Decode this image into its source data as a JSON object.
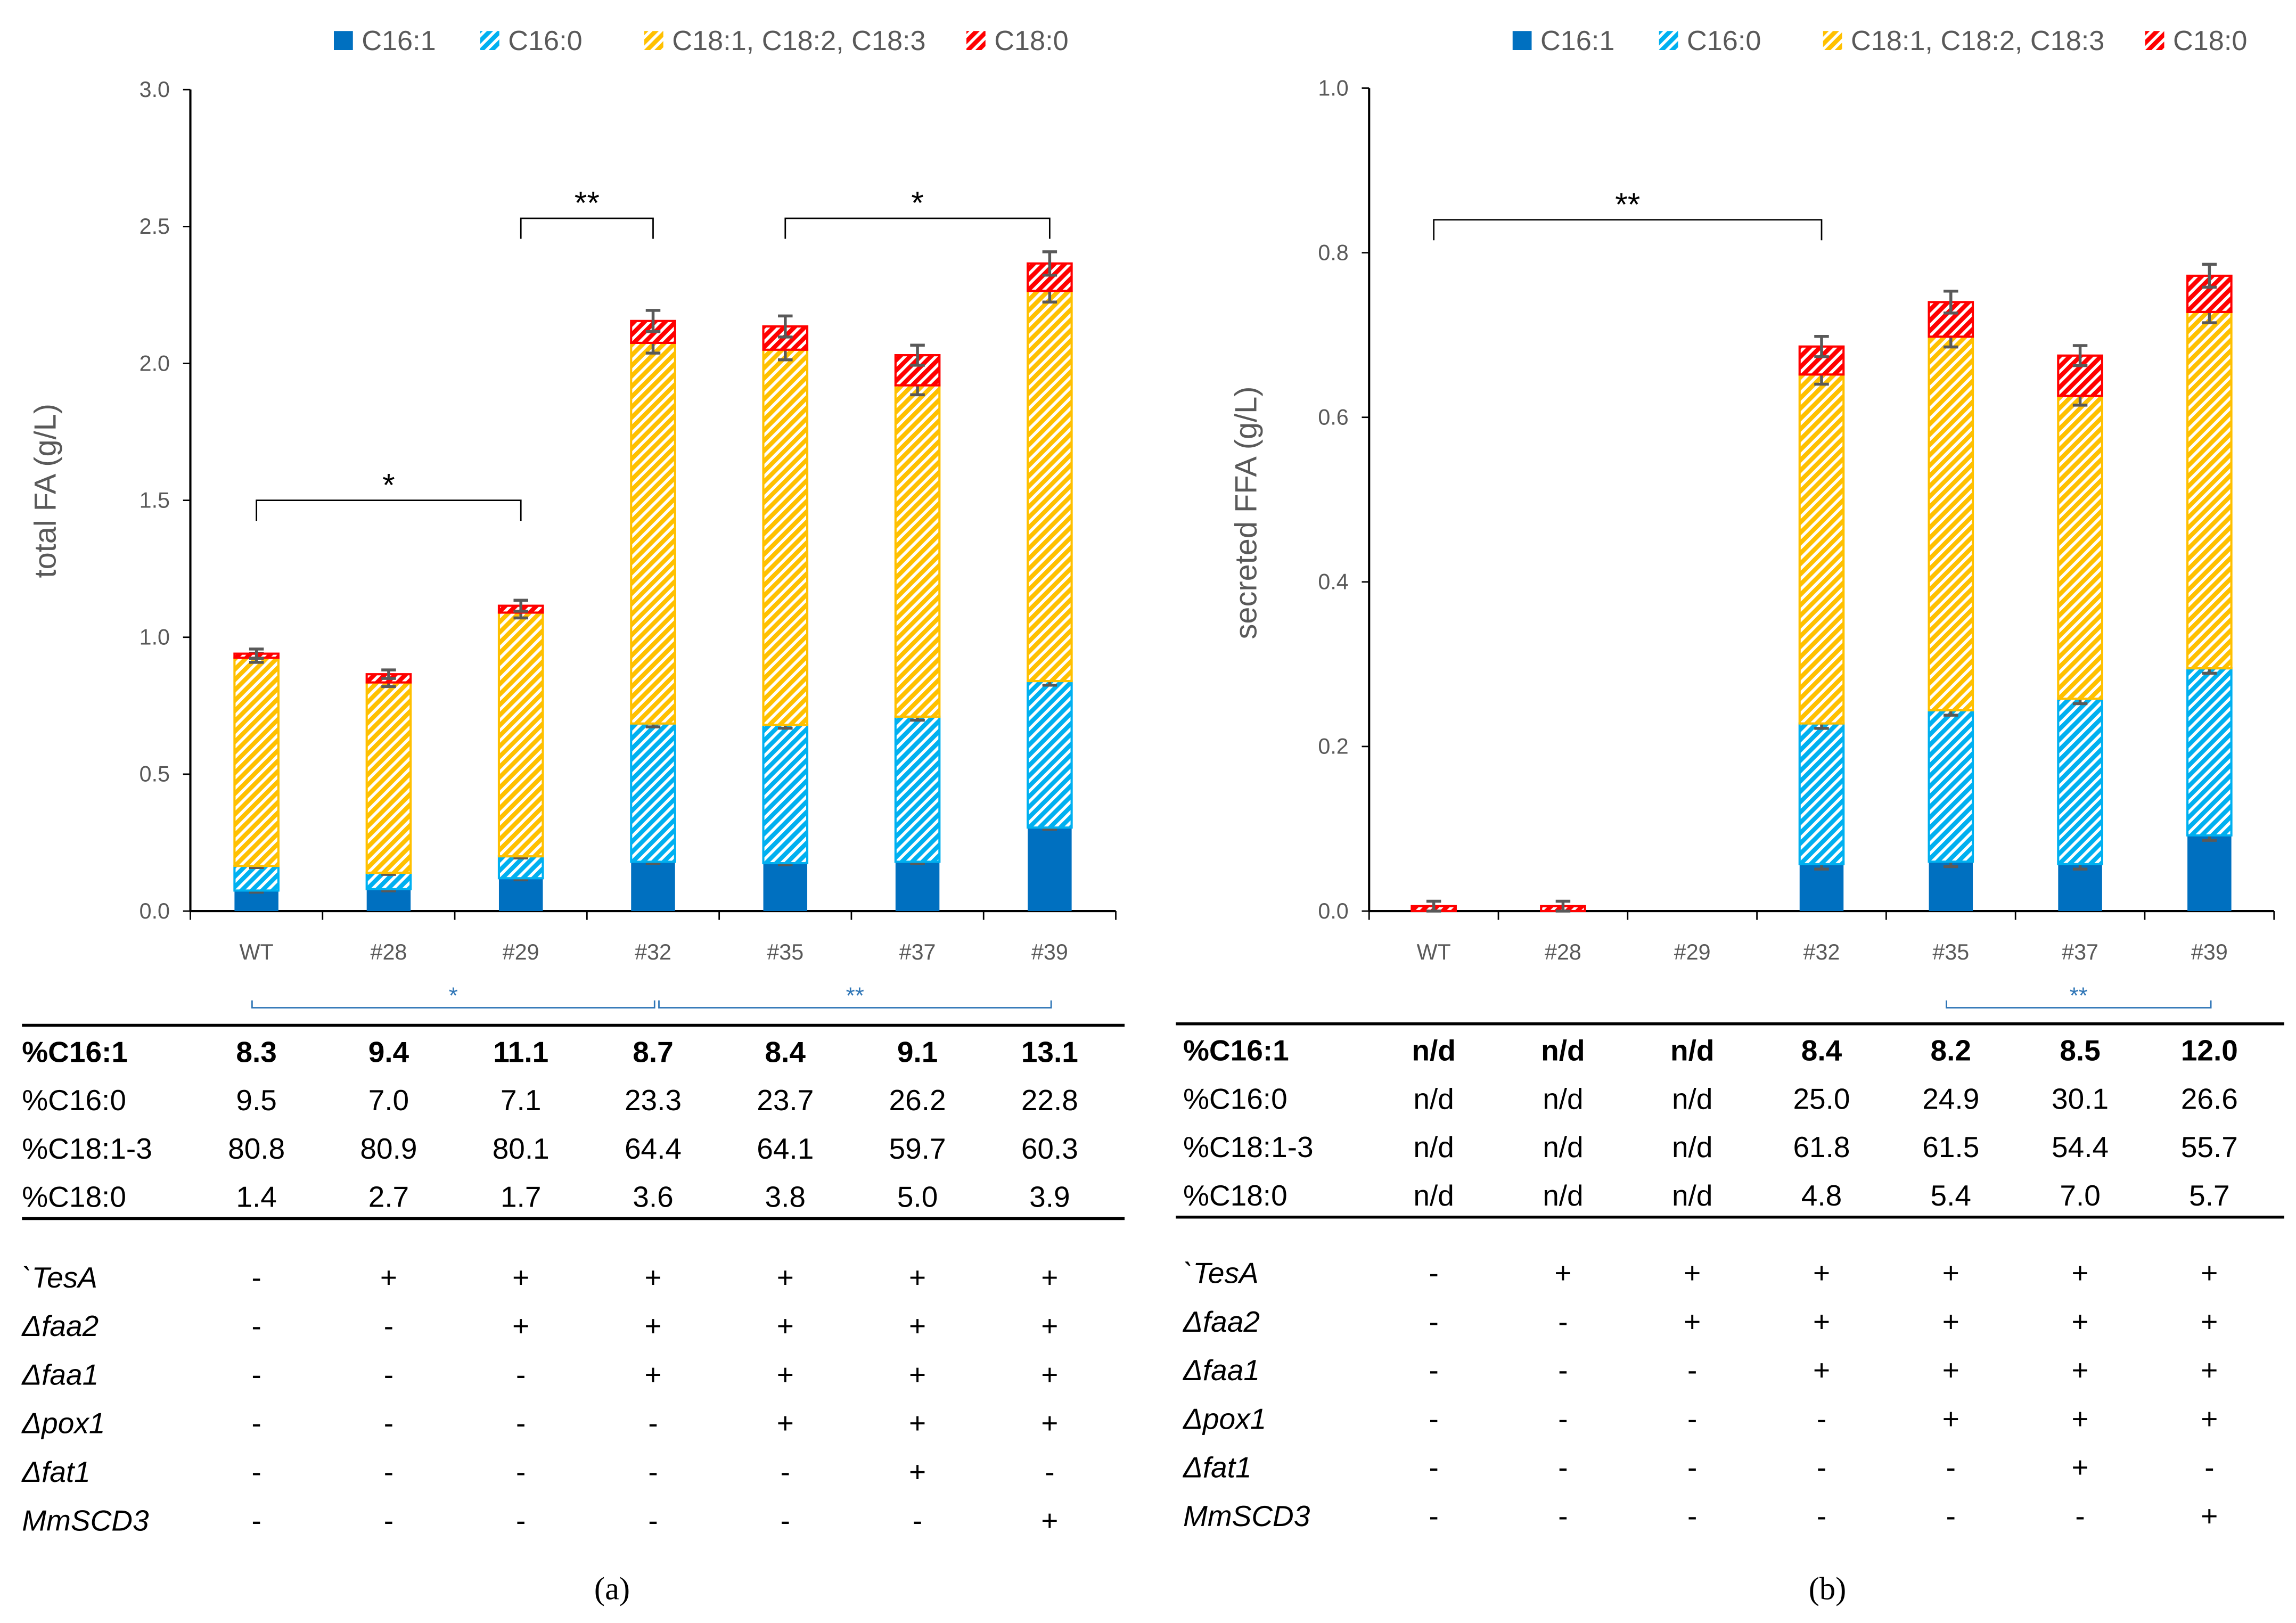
{
  "colors": {
    "C16:1": "#0070c0",
    "C16:0": "#00b0f0",
    "C18:1-3": "#ffc000",
    "C18:0": "#ff0000",
    "sig_blue": "#2e75b6"
  },
  "chart_data": [
    {
      "type": "bar",
      "stacked": true,
      "panel": "(a)",
      "ylabel": "total FA (g/L)",
      "xlabel": "",
      "ylim": [
        0,
        3.0
      ],
      "yticks": [
        "0.0",
        "0.5",
        "1.0",
        "1.5",
        "2.0",
        "2.5",
        "3.0"
      ],
      "categories": [
        "WT",
        "#28",
        "#29",
        "#32",
        "#35",
        "#37",
        "#39"
      ],
      "legend_position": "top",
      "series": [
        {
          "name": "C16:1",
          "values": [
            0.075,
            0.08,
            0.12,
            0.18,
            0.175,
            0.18,
            0.305
          ]
        },
        {
          "name": "C16:0",
          "values": [
            0.09,
            0.06,
            0.08,
            0.505,
            0.505,
            0.53,
            0.535
          ]
        },
        {
          "name": "C18:1, C18:2, C18:3",
          "values": [
            0.76,
            0.695,
            0.89,
            1.39,
            1.37,
            1.21,
            1.425
          ]
        },
        {
          "name": "C18:0",
          "values": [
            0.015,
            0.03,
            0.025,
            0.08,
            0.085,
            0.11,
            0.1
          ]
        }
      ],
      "significance": [
        {
          "from": "WT",
          "to": "#29",
          "label": "*",
          "level": 1.5
        },
        {
          "from": "#29",
          "to": "#32",
          "label": "**",
          "level": 2.53
        },
        {
          "from": "#35",
          "to": "#39",
          "label": "*",
          "level": 2.53
        }
      ],
      "composition_significance": [
        {
          "from": "WT",
          "to": "#32",
          "label": "*"
        },
        {
          "from": "#32",
          "to": "#39",
          "label": "**"
        }
      ]
    },
    {
      "type": "bar",
      "stacked": true,
      "panel": "(b)",
      "ylabel": "secreted FFA (g/L)",
      "xlabel": "",
      "ylim": [
        0,
        1.0
      ],
      "yticks": [
        "0.0",
        "0.2",
        "0.4",
        "0.6",
        "0.8",
        "1.0"
      ],
      "categories": [
        "WT",
        "#28",
        "#29",
        "#32",
        "#35",
        "#37",
        "#39"
      ],
      "legend_position": "top",
      "series": [
        {
          "name": "C16:1",
          "values": [
            0,
            0,
            0,
            0.057,
            0.06,
            0.057,
            0.092
          ]
        },
        {
          "name": "C16:0",
          "values": [
            0,
            0,
            0,
            0.171,
            0.184,
            0.201,
            0.203
          ]
        },
        {
          "name": "C18:1, C18:2, C18:3",
          "values": [
            0,
            0,
            0,
            0.424,
            0.454,
            0.368,
            0.433
          ]
        },
        {
          "name": "C18:0",
          "values": [
            0.006,
            0.006,
            0,
            0.034,
            0.042,
            0.049,
            0.044
          ]
        }
      ],
      "significance": [
        {
          "from": "WT",
          "to": "#32",
          "label": "**",
          "level": 0.84
        }
      ],
      "composition_significance": [
        {
          "from": "#35",
          "to": "#39",
          "label": "**"
        }
      ]
    }
  ],
  "tables": [
    {
      "composition": [
        {
          "label": "%C16:1",
          "bold": true,
          "values": [
            "8.3",
            "9.4",
            "11.1",
            "8.7",
            "8.4",
            "9.1",
            "13.1"
          ]
        },
        {
          "label": "%C16:0",
          "values": [
            "9.5",
            "7.0",
            "7.1",
            "23.3",
            "23.7",
            "26.2",
            "22.8"
          ]
        },
        {
          "label": "%C18:1-3",
          "values": [
            "80.8",
            "80.9",
            "80.1",
            "64.4",
            "64.1",
            "59.7",
            "60.3"
          ]
        },
        {
          "label": "%C18:0",
          "values": [
            "1.4",
            "2.7",
            "1.7",
            "3.6",
            "3.8",
            "5.0",
            "3.9"
          ]
        }
      ],
      "genotype": [
        {
          "label": "`TesA",
          "values": [
            "-",
            "+",
            "+",
            "+",
            "+",
            "+",
            "+"
          ]
        },
        {
          "label": "Δfaa2",
          "values": [
            "-",
            "-",
            "+",
            "+",
            "+",
            "+",
            "+"
          ]
        },
        {
          "label": "Δfaa1",
          "values": [
            "-",
            "-",
            "-",
            "+",
            "+",
            "+",
            "+"
          ]
        },
        {
          "label": "Δpox1",
          "values": [
            "-",
            "-",
            "-",
            "-",
            "+",
            "+",
            "+"
          ]
        },
        {
          "label": "Δfat1",
          "values": [
            "-",
            "-",
            "-",
            "-",
            "-",
            "+",
            "-"
          ]
        },
        {
          "label": "MmSCD3",
          "values": [
            "-",
            "-",
            "-",
            "-",
            "-",
            "-",
            "+"
          ]
        }
      ]
    },
    {
      "composition": [
        {
          "label": "%C16:1",
          "bold": true,
          "values": [
            "n/d",
            "n/d",
            "n/d",
            "8.4",
            "8.2",
            "8.5",
            "12.0"
          ]
        },
        {
          "label": "%C16:0",
          "values": [
            "n/d",
            "n/d",
            "n/d",
            "25.0",
            "24.9",
            "30.1",
            "26.6"
          ]
        },
        {
          "label": "%C18:1-3",
          "values": [
            "n/d",
            "n/d",
            "n/d",
            "61.8",
            "61.5",
            "54.4",
            "55.7"
          ]
        },
        {
          "label": "%C18:0",
          "values": [
            "n/d",
            "n/d",
            "n/d",
            "4.8",
            "5.4",
            "7.0",
            "5.7"
          ]
        }
      ],
      "genotype": [
        {
          "label": "`TesA",
          "values": [
            "-",
            "+",
            "+",
            "+",
            "+",
            "+",
            "+"
          ]
        },
        {
          "label": "Δfaa2",
          "values": [
            "-",
            "-",
            "+",
            "+",
            "+",
            "+",
            "+"
          ]
        },
        {
          "label": "Δfaa1",
          "values": [
            "-",
            "-",
            "-",
            "+",
            "+",
            "+",
            "+"
          ]
        },
        {
          "label": "Δpox1",
          "values": [
            "-",
            "-",
            "-",
            "-",
            "+",
            "+",
            "+"
          ]
        },
        {
          "label": "Δfat1",
          "values": [
            "-",
            "-",
            "-",
            "-",
            "-",
            "+",
            "-"
          ]
        },
        {
          "label": "MmSCD3",
          "values": [
            "-",
            "-",
            "-",
            "-",
            "-",
            "-",
            "+"
          ]
        }
      ]
    }
  ]
}
